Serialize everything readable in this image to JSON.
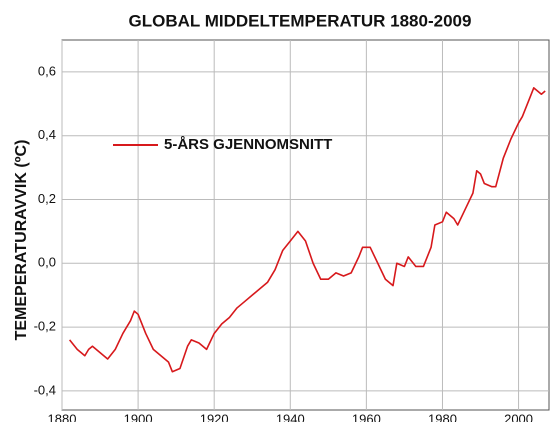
{
  "chart_data": {
    "type": "line",
    "title": "GLOBAL MIDDELTEMPERATUR 1880-2009",
    "y_label": "TEMEPERATURAVVIK (ºC)",
    "x": [
      1882,
      1884,
      1886,
      1887,
      1888,
      1890,
      1892,
      1894,
      1896,
      1898,
      1899,
      1900,
      1902,
      1904,
      1906,
      1908,
      1909,
      1911,
      1913,
      1914,
      1916,
      1918,
      1920,
      1922,
      1924,
      1926,
      1928,
      1930,
      1932,
      1934,
      1936,
      1938,
      1940,
      1942,
      1944,
      1946,
      1948,
      1950,
      1952,
      1954,
      1956,
      1958,
      1959,
      1961,
      1963,
      1965,
      1967,
      1968,
      1970,
      1971,
      1973,
      1975,
      1977,
      1978,
      1980,
      1981,
      1983,
      1984,
      1986,
      1988,
      1989,
      1990,
      1991,
      1993,
      1994,
      1996,
      1998,
      2000,
      2001,
      2003,
      2004,
      2006,
      2007
    ],
    "series": [
      {
        "name": "5-ÅRS GJENNOMSNITT",
        "color": "#d7191c",
        "values": [
          -0.24,
          -0.27,
          -0.29,
          -0.27,
          -0.26,
          -0.28,
          -0.3,
          -0.27,
          -0.22,
          -0.18,
          -0.15,
          -0.16,
          -0.22,
          -0.27,
          -0.29,
          -0.31,
          -0.34,
          -0.33,
          -0.26,
          -0.24,
          -0.25,
          -0.27,
          -0.22,
          -0.19,
          -0.17,
          -0.14,
          -0.12,
          -0.1,
          -0.08,
          -0.06,
          -0.02,
          0.04,
          0.07,
          0.1,
          0.07,
          0.0,
          -0.05,
          -0.05,
          -0.03,
          -0.04,
          -0.03,
          0.02,
          0.05,
          0.05,
          0.0,
          -0.05,
          -0.07,
          0.0,
          -0.01,
          0.02,
          -0.01,
          -0.01,
          0.05,
          0.12,
          0.13,
          0.16,
          0.14,
          0.12,
          0.17,
          0.22,
          0.29,
          0.28,
          0.25,
          0.24,
          0.24,
          0.33,
          0.39,
          0.44,
          0.46,
          0.52,
          0.55,
          0.53,
          0.54
        ]
      }
    ],
    "xlim": [
      1880,
      2008
    ],
    "xticks": [
      1880,
      1900,
      1920,
      1940,
      1960,
      1980,
      2000
    ],
    "ylim": [
      -0.46,
      0.7
    ],
    "yticks": [
      {
        "value": -0.4,
        "label": "-0,4"
      },
      {
        "value": -0.2,
        "label": "-0,2"
      },
      {
        "value": 0,
        "label": "0,0"
      },
      {
        "value": 0.2,
        "label": "0,2"
      },
      {
        "value": 0.4,
        "label": "0,4"
      },
      {
        "value": 0.6,
        "label": "0,6"
      }
    ],
    "grid": true
  }
}
